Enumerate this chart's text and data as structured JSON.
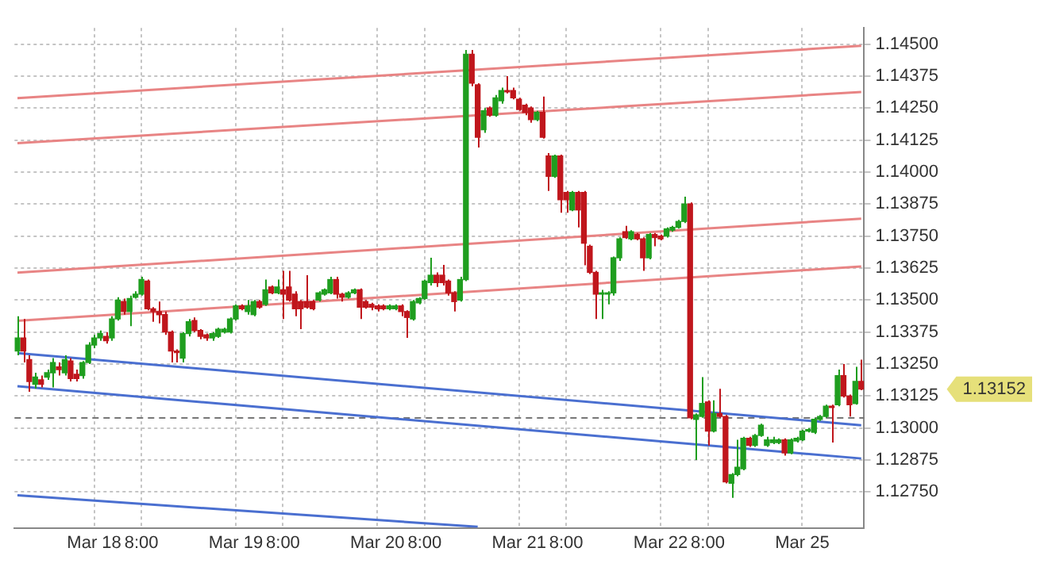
{
  "chart_data": {
    "type": "candlestick",
    "categories": [
      null,
      null,
      null,
      null,
      null,
      null,
      null,
      null,
      null,
      null,
      null,
      null,
      null,
      "Mar 18",
      null,
      null,
      null,
      null,
      null,
      null,
      null,
      "8:00",
      null,
      null,
      null,
      null,
      null,
      null,
      null,
      null,
      null,
      null,
      null,
      null,
      null,
      null,
      null,
      "Mar 19",
      null,
      null,
      null,
      null,
      null,
      null,
      null,
      "8:00",
      null,
      null,
      null,
      null,
      null,
      null,
      null,
      null,
      null,
      null,
      null,
      null,
      null,
      null,
      null,
      "Mar 20",
      null,
      null,
      null,
      null,
      null,
      null,
      null,
      "8:00",
      null,
      null,
      null,
      null,
      null,
      null,
      null,
      null,
      null,
      null,
      null,
      null,
      null,
      null,
      null,
      "Mar 21",
      null,
      null,
      null,
      null,
      null,
      null,
      null,
      "8:00",
      null,
      null,
      null,
      null,
      null,
      null,
      null,
      null,
      null,
      null,
      null,
      null,
      null,
      null,
      null,
      "Mar 22",
      null,
      null,
      null,
      null,
      null,
      null,
      null,
      "8:00",
      null,
      null,
      null,
      null,
      null,
      null,
      null,
      null,
      null,
      null,
      null,
      null,
      null,
      null,
      null,
      "Mar 25",
      null,
      null,
      null,
      null,
      null,
      null,
      null,
      null,
      null,
      null
    ],
    "ohlc": [
      [
        1.13301,
        1.13437,
        1.13284,
        1.13352
      ],
      [
        1.13352,
        1.13426,
        1.13256,
        1.13301
      ],
      [
        1.13267,
        1.13284,
        1.13142,
        1.13182
      ],
      [
        1.13171,
        1.13216,
        1.13154,
        1.13199
      ],
      [
        1.13188,
        1.13205,
        1.13159,
        1.13171
      ],
      [
        1.13199,
        1.13228,
        1.13188,
        1.13216
      ],
      [
        1.13216,
        1.13273,
        1.13159,
        1.13256
      ],
      [
        1.13239,
        1.13256,
        1.13205,
        1.13228
      ],
      [
        1.13216,
        1.13284,
        1.13205,
        1.13267
      ],
      [
        1.13262,
        1.13273,
        1.13182,
        1.13193
      ],
      [
        1.1321,
        1.13228,
        1.13182,
        1.13193
      ],
      [
        1.13205,
        1.13262,
        1.13193,
        1.13256
      ],
      [
        1.13256,
        1.13335,
        1.1325,
        1.13324
      ],
      [
        1.13324,
        1.13364,
        1.13312,
        1.13352
      ],
      [
        1.13352,
        1.13381,
        1.13341,
        1.13369
      ],
      [
        1.13358,
        1.13375,
        1.1333,
        1.13341
      ],
      [
        1.13352,
        1.13437,
        1.13341,
        1.13426
      ],
      [
        1.13426,
        1.13511,
        1.1342,
        1.135
      ],
      [
        1.13494,
        1.13506,
        1.13443,
        1.13455
      ],
      [
        1.13455,
        1.13517,
        1.13398,
        1.13506
      ],
      [
        1.13511,
        1.13534,
        1.13506,
        1.13523
      ],
      [
        1.13523,
        1.13591,
        1.13517,
        1.1358
      ],
      [
        1.13574,
        1.1358,
        1.1346,
        1.13466
      ],
      [
        1.13466,
        1.13472,
        1.13415,
        1.13455
      ],
      [
        1.13455,
        1.13494,
        1.13409,
        1.13443
      ],
      [
        1.13443,
        1.13455,
        1.13364,
        1.13375
      ],
      [
        1.13375,
        1.13381,
        1.13256,
        1.13301
      ],
      [
        1.13301,
        1.13307,
        1.13256,
        1.13295
      ],
      [
        1.13273,
        1.13375,
        1.13256,
        1.13369
      ],
      [
        1.13369,
        1.13426,
        1.13358,
        1.13415
      ],
      [
        1.1342,
        1.13432,
        1.13375,
        1.13381
      ],
      [
        1.13381,
        1.13386,
        1.13347,
        1.13358
      ],
      [
        1.13364,
        1.13369,
        1.13341,
        1.13352
      ],
      [
        1.13352,
        1.13375,
        1.13341,
        1.13369
      ],
      [
        1.13358,
        1.13392,
        1.13352,
        1.13386
      ],
      [
        1.13375,
        1.13392,
        1.13369,
        1.13386
      ],
      [
        1.13375,
        1.13432,
        1.13369,
        1.13426
      ],
      [
        1.13426,
        1.13483,
        1.1342,
        1.13477
      ],
      [
        1.13477,
        1.13483,
        1.1346,
        1.13466
      ],
      [
        1.13455,
        1.135,
        1.13443,
        1.13477
      ],
      [
        1.13443,
        1.135,
        1.13437,
        1.13494
      ],
      [
        1.13494,
        1.135,
        1.13466,
        1.13472
      ],
      [
        1.13483,
        1.1358,
        1.13477,
        1.1354
      ],
      [
        1.13551,
        1.13557,
        1.13523,
        1.13528
      ],
      [
        1.13528,
        1.1358,
        1.13523,
        1.13551
      ],
      [
        1.1354,
        1.13614,
        1.13426,
        1.13523
      ],
      [
        1.13551,
        1.13614,
        1.13494,
        1.135
      ],
      [
        1.13523,
        1.13534,
        1.13437,
        1.13466
      ],
      [
        1.13494,
        1.135,
        1.13386,
        1.13466
      ],
      [
        1.13494,
        1.13597,
        1.13466,
        1.13472
      ],
      [
        1.13494,
        1.135,
        1.1346,
        1.13466
      ],
      [
        1.135,
        1.13534,
        1.13494,
        1.13528
      ],
      [
        1.13523,
        1.13545,
        1.13517,
        1.1354
      ],
      [
        1.13528,
        1.13591,
        1.13523,
        1.1358
      ],
      [
        1.1358,
        1.13591,
        1.13506,
        1.13523
      ],
      [
        1.13523,
        1.13528,
        1.13494,
        1.13511
      ],
      [
        1.13511,
        1.13534,
        1.13506,
        1.13528
      ],
      [
        1.13528,
        1.13545,
        1.13523,
        1.1354
      ],
      [
        1.1354,
        1.13545,
        1.13426,
        1.13472
      ],
      [
        1.13494,
        1.135,
        1.13466,
        1.13472
      ],
      [
        1.13483,
        1.13489,
        1.1346,
        1.13472
      ],
      [
        1.13477,
        1.13483,
        1.13455,
        1.13466
      ],
      [
        1.13477,
        1.13483,
        1.1346,
        1.13466
      ],
      [
        1.13466,
        1.13483,
        1.1346,
        1.13477
      ],
      [
        1.13466,
        1.13483,
        1.1346,
        1.13477
      ],
      [
        1.13477,
        1.13483,
        1.13437,
        1.13455
      ],
      [
        1.13455,
        1.1346,
        1.13352,
        1.13432
      ],
      [
        1.13426,
        1.135,
        1.1342,
        1.13494
      ],
      [
        1.13489,
        1.13511,
        1.13483,
        1.13506
      ],
      [
        1.13506,
        1.1358,
        1.135,
        1.13574
      ],
      [
        1.13568,
        1.13665,
        1.13557,
        1.13597
      ],
      [
        1.13597,
        1.13608,
        1.13551,
        1.13568
      ],
      [
        1.13597,
        1.13637,
        1.13557,
        1.13568
      ],
      [
        1.13574,
        1.1358,
        1.13517,
        1.13528
      ],
      [
        1.13528,
        1.13534,
        1.13455,
        1.13494
      ],
      [
        1.135,
        1.13591,
        1.13494,
        1.1358
      ],
      [
        1.1358,
        1.14477,
        1.13574,
        1.1446
      ],
      [
        1.1446,
        1.14477,
        1.14335,
        1.14347
      ],
      [
        1.14341,
        1.14347,
        1.14096,
        1.14136
      ],
      [
        1.14165,
        1.1425,
        1.14153,
        1.14239
      ],
      [
        1.1425,
        1.14256,
        1.14216,
        1.14222
      ],
      [
        1.14222,
        1.14301,
        1.14216,
        1.1429
      ],
      [
        1.14278,
        1.1433,
        1.14267,
        1.14318
      ],
      [
        1.14318,
        1.14375,
        1.14307,
        1.14313
      ],
      [
        1.14318,
        1.1433,
        1.14284,
        1.1429
      ],
      [
        1.14284,
        1.1429,
        1.14239,
        1.14244
      ],
      [
        1.14261,
        1.14267,
        1.14222,
        1.14233
      ],
      [
        1.1425,
        1.14256,
        1.14193,
        1.14205
      ],
      [
        1.14205,
        1.14239,
        1.14199,
        1.14233
      ],
      [
        1.14233,
        1.14295,
        1.14131,
        1.14136
      ],
      [
        1.14063,
        1.14074,
        1.13926,
        1.13983
      ],
      [
        1.13983,
        1.14068,
        1.13977,
        1.14063
      ],
      [
        1.14063,
        1.14068,
        1.13841,
        1.13892
      ],
      [
        1.1392,
        1.13926,
        1.13841,
        1.13892
      ],
      [
        1.13852,
        1.13926,
        1.13847,
        1.1392
      ],
      [
        1.1392,
        1.13926,
        1.13784,
        1.13852
      ],
      [
        1.1392,
        1.13926,
        1.13636,
        1.13722
      ],
      [
        1.1371,
        1.13716,
        1.13602,
        1.13608
      ],
      [
        1.13608,
        1.13614,
        1.13426,
        1.13523
      ],
      [
        1.13523,
        1.1354,
        1.13426,
        1.13528
      ],
      [
        1.13523,
        1.13534,
        1.13483,
        1.13528
      ],
      [
        1.13528,
        1.1367,
        1.13517,
        1.13665
      ],
      [
        1.13665,
        1.13745,
        1.13653,
        1.13739
      ],
      [
        1.13767,
        1.1379,
        1.13739,
        1.13744
      ],
      [
        1.13739,
        1.13773,
        1.13733,
        1.13767
      ],
      [
        1.13756,
        1.13762,
        1.13733,
        1.13739
      ],
      [
        1.13739,
        1.13745,
        1.13614,
        1.13665
      ],
      [
        1.13665,
        1.13762,
        1.13659,
        1.13756
      ],
      [
        1.13756,
        1.13762,
        1.1371,
        1.13744
      ],
      [
        1.1375,
        1.13756,
        1.13733,
        1.13739
      ],
      [
        1.1375,
        1.13784,
        1.13744,
        1.13778
      ],
      [
        1.13773,
        1.1379,
        1.13767,
        1.13784
      ],
      [
        1.13784,
        1.13813,
        1.13779,
        1.13807
      ],
      [
        1.13807,
        1.13904,
        1.13801,
        1.13875
      ],
      [
        1.13875,
        1.13881,
        1.13034,
        1.1304
      ],
      [
        1.13034,
        1.13057,
        1.12875,
        1.13051
      ],
      [
        1.13045,
        1.13199,
        1.1304,
        1.13096
      ],
      [
        1.13102,
        1.13108,
        1.12932,
        1.12988
      ],
      [
        1.12988,
        1.13108,
        1.12983,
        1.13057
      ],
      [
        1.13057,
        1.13153,
        1.1304,
        1.13045
      ],
      [
        1.13045,
        1.13051,
        1.12784,
        1.1279
      ],
      [
        1.12784,
        1.12824,
        1.12727,
        1.12818
      ],
      [
        1.12818,
        1.12954,
        1.12812,
        1.12847
      ],
      [
        1.12841,
        1.12966,
        1.12835,
        1.1296
      ],
      [
        1.1296,
        1.12966,
        1.12926,
        1.12932
      ],
      [
        1.12932,
        1.12977,
        1.12926,
        1.12971
      ],
      [
        1.12971,
        1.13017,
        1.12966,
        1.13011
      ],
      [
        1.12932,
        1.12966,
        1.12926,
        1.12954
      ],
      [
        1.12943,
        1.12966,
        1.12937,
        1.12954
      ],
      [
        1.12943,
        1.1296,
        1.12937,
        1.12954
      ],
      [
        1.12954,
        1.1296,
        1.12892,
        1.12903
      ],
      [
        1.12903,
        1.1296,
        1.12898,
        1.12954
      ],
      [
        1.12949,
        1.12966,
        1.12943,
        1.1296
      ],
      [
        1.12954,
        1.12994,
        1.12949,
        1.12988
      ],
      [
        1.12988,
        1.13,
        1.12983,
        1.12994
      ],
      [
        1.12983,
        1.1304,
        1.12977,
        1.13034
      ],
      [
        1.13034,
        1.13051,
        1.13028,
        1.13045
      ],
      [
        1.13045,
        1.13091,
        1.1304,
        1.13085
      ],
      [
        1.13085,
        1.13091,
        1.12943,
        1.1308
      ],
      [
        1.13091,
        1.13228,
        1.13085,
        1.13205
      ],
      [
        1.13205,
        1.1325,
        1.13119,
        1.13125
      ],
      [
        1.13125,
        1.13131,
        1.13045,
        1.13091
      ],
      [
        1.13096,
        1.13239,
        1.13091,
        1.13182
      ],
      [
        1.13182,
        1.13267,
        1.13148,
        1.13152
      ]
    ],
    "series": [
      {
        "type": "line",
        "color": "#e88484",
        "values": [
          1.14289,
          null,
          null,
          null,
          null,
          null,
          null,
          null,
          null,
          null,
          null,
          null,
          null,
          null,
          null,
          null,
          null,
          null,
          null,
          null,
          null,
          null,
          null,
          null,
          null,
          null,
          null,
          null,
          null,
          null,
          null,
          null,
          null,
          null,
          null,
          null,
          null,
          null,
          null,
          null,
          null,
          null,
          null,
          null,
          null,
          null,
          null,
          null,
          null,
          null,
          null,
          null,
          null,
          null,
          null,
          null,
          null,
          null,
          null,
          null,
          null,
          null,
          null,
          null,
          null,
          null,
          null,
          null,
          null,
          null,
          null,
          null,
          null,
          null,
          null,
          null,
          null,
          null,
          null,
          null,
          null,
          null,
          null,
          null,
          null,
          null,
          null,
          null,
          null,
          null,
          null,
          null,
          null,
          null,
          null,
          null,
          null,
          null,
          null,
          null,
          null,
          null,
          null,
          null,
          null,
          null,
          null,
          null,
          null,
          null,
          null,
          null,
          null,
          null,
          null,
          null,
          null,
          null,
          null,
          null,
          null,
          null,
          null,
          null,
          null,
          null,
          null,
          null,
          null,
          null,
          null,
          null,
          null,
          null,
          null,
          null,
          null,
          null,
          null,
          null,
          null,
          null,
          null,
          1.14493
        ]
      },
      {
        "type": "line",
        "color": "#e88484",
        "values": [
          1.14113,
          null,
          null,
          null,
          null,
          null,
          null,
          null,
          null,
          null,
          null,
          null,
          null,
          null,
          null,
          null,
          null,
          null,
          null,
          null,
          null,
          null,
          null,
          null,
          null,
          null,
          null,
          null,
          null,
          null,
          null,
          null,
          null,
          null,
          null,
          null,
          null,
          null,
          null,
          null,
          null,
          null,
          null,
          null,
          null,
          null,
          null,
          null,
          null,
          null,
          null,
          null,
          null,
          null,
          null,
          null,
          null,
          null,
          null,
          null,
          null,
          null,
          null,
          null,
          null,
          null,
          null,
          null,
          null,
          null,
          null,
          null,
          null,
          null,
          null,
          null,
          null,
          null,
          null,
          null,
          null,
          null,
          null,
          null,
          null,
          null,
          null,
          null,
          null,
          null,
          null,
          null,
          null,
          null,
          null,
          null,
          null,
          null,
          null,
          null,
          null,
          null,
          null,
          null,
          null,
          null,
          null,
          null,
          null,
          null,
          null,
          null,
          null,
          null,
          null,
          null,
          null,
          null,
          null,
          null,
          null,
          null,
          null,
          null,
          null,
          null,
          null,
          null,
          null,
          null,
          null,
          null,
          null,
          null,
          null,
          null,
          null,
          null,
          null,
          null,
          null,
          null,
          null,
          1.14313
        ]
      },
      {
        "type": "line",
        "color": "#e88484",
        "values": [
          1.13607,
          null,
          null,
          null,
          null,
          null,
          null,
          null,
          null,
          null,
          null,
          null,
          null,
          null,
          null,
          null,
          null,
          null,
          null,
          null,
          null,
          null,
          null,
          null,
          null,
          null,
          null,
          null,
          null,
          null,
          null,
          null,
          null,
          null,
          null,
          null,
          null,
          null,
          null,
          null,
          null,
          null,
          null,
          null,
          null,
          null,
          null,
          null,
          null,
          null,
          null,
          null,
          null,
          null,
          null,
          null,
          null,
          null,
          null,
          null,
          null,
          null,
          null,
          null,
          null,
          null,
          null,
          null,
          null,
          null,
          null,
          null,
          null,
          null,
          null,
          null,
          null,
          null,
          null,
          null,
          null,
          null,
          null,
          null,
          null,
          null,
          null,
          null,
          null,
          null,
          null,
          null,
          null,
          null,
          null,
          null,
          null,
          null,
          null,
          null,
          null,
          null,
          null,
          null,
          null,
          null,
          null,
          null,
          null,
          null,
          null,
          null,
          null,
          null,
          null,
          null,
          null,
          null,
          null,
          null,
          null,
          null,
          null,
          null,
          null,
          null,
          null,
          null,
          null,
          null,
          null,
          null,
          null,
          null,
          null,
          null,
          null,
          null,
          null,
          null,
          null,
          null,
          null,
          1.13818
        ]
      },
      {
        "type": "line",
        "color": "#e88484",
        "values": [
          1.13419,
          null,
          null,
          null,
          null,
          null,
          null,
          null,
          null,
          null,
          null,
          null,
          null,
          null,
          null,
          null,
          null,
          null,
          null,
          null,
          null,
          null,
          null,
          null,
          null,
          null,
          null,
          null,
          null,
          null,
          null,
          null,
          null,
          null,
          null,
          null,
          null,
          null,
          null,
          null,
          null,
          null,
          null,
          null,
          null,
          null,
          null,
          null,
          null,
          null,
          null,
          null,
          null,
          null,
          null,
          null,
          null,
          null,
          null,
          null,
          null,
          null,
          null,
          null,
          null,
          null,
          null,
          null,
          null,
          null,
          null,
          null,
          null,
          null,
          null,
          null,
          null,
          null,
          null,
          null,
          null,
          null,
          null,
          null,
          null,
          null,
          null,
          null,
          null,
          null,
          null,
          null,
          null,
          null,
          null,
          null,
          null,
          null,
          null,
          null,
          null,
          null,
          null,
          null,
          null,
          null,
          null,
          null,
          null,
          null,
          null,
          null,
          null,
          null,
          null,
          null,
          null,
          null,
          null,
          null,
          null,
          null,
          null,
          null,
          null,
          null,
          null,
          null,
          null,
          null,
          null,
          null,
          null,
          null,
          null,
          null,
          null,
          null,
          null,
          null,
          null,
          null,
          null,
          1.13631
        ]
      },
      {
        "type": "line",
        "color": "#4a6fd0",
        "values": [
          1.13293,
          null,
          null,
          null,
          null,
          null,
          null,
          null,
          null,
          null,
          null,
          null,
          null,
          null,
          null,
          null,
          null,
          null,
          null,
          null,
          null,
          null,
          null,
          null,
          null,
          null,
          null,
          null,
          null,
          null,
          null,
          null,
          null,
          null,
          null,
          null,
          null,
          null,
          null,
          null,
          null,
          null,
          null,
          null,
          null,
          null,
          null,
          null,
          null,
          null,
          null,
          null,
          null,
          null,
          null,
          null,
          null,
          null,
          null,
          null,
          null,
          null,
          null,
          null,
          null,
          null,
          null,
          null,
          null,
          null,
          null,
          null,
          null,
          null,
          null,
          null,
          null,
          null,
          null,
          null,
          null,
          null,
          null,
          null,
          null,
          null,
          null,
          null,
          null,
          null,
          null,
          null,
          null,
          null,
          null,
          null,
          null,
          null,
          null,
          null,
          null,
          null,
          null,
          null,
          null,
          null,
          null,
          null,
          null,
          null,
          null,
          null,
          null,
          null,
          null,
          null,
          null,
          null,
          null,
          null,
          null,
          null,
          null,
          null,
          null,
          null,
          null,
          null,
          null,
          null,
          null,
          null,
          null,
          null,
          null,
          null,
          null,
          null,
          null,
          null,
          null,
          null,
          null,
          1.13011
        ]
      },
      {
        "type": "line",
        "color": "#4a6fd0",
        "values": [
          1.13163,
          null,
          null,
          null,
          null,
          null,
          null,
          null,
          null,
          null,
          null,
          null,
          null,
          null,
          null,
          null,
          null,
          null,
          null,
          null,
          null,
          null,
          null,
          null,
          null,
          null,
          null,
          null,
          null,
          null,
          null,
          null,
          null,
          null,
          null,
          null,
          null,
          null,
          null,
          null,
          null,
          null,
          null,
          null,
          null,
          null,
          null,
          null,
          null,
          null,
          null,
          null,
          null,
          null,
          null,
          null,
          null,
          null,
          null,
          null,
          null,
          null,
          null,
          null,
          null,
          null,
          null,
          null,
          null,
          null,
          null,
          null,
          null,
          null,
          null,
          null,
          null,
          null,
          null,
          null,
          null,
          null,
          null,
          null,
          null,
          null,
          null,
          null,
          null,
          null,
          null,
          null,
          null,
          null,
          null,
          null,
          null,
          null,
          null,
          null,
          null,
          null,
          null,
          null,
          null,
          null,
          null,
          null,
          null,
          null,
          null,
          null,
          null,
          null,
          null,
          null,
          null,
          null,
          null,
          null,
          null,
          null,
          null,
          null,
          null,
          null,
          null,
          null,
          null,
          null,
          null,
          null,
          null,
          null,
          null,
          null,
          null,
          null,
          null,
          null,
          null,
          null,
          null,
          1.12881
        ]
      },
      {
        "type": "line",
        "color": "#4a6fd0",
        "values": [
          1.12737,
          null,
          null,
          null,
          null,
          null,
          null,
          null,
          null,
          null,
          null,
          null,
          null,
          null,
          null,
          null,
          null,
          null,
          null,
          null,
          null,
          null,
          null,
          null,
          null,
          null,
          null,
          null,
          null,
          null,
          null,
          null,
          null,
          null,
          null,
          null,
          null,
          null,
          null,
          null,
          null,
          null,
          null,
          null,
          null,
          null,
          null,
          null,
          null,
          null,
          null,
          null,
          null,
          null,
          null,
          null,
          null,
          null,
          null,
          null,
          null,
          null,
          null,
          null,
          null,
          null,
          null,
          null,
          null,
          null,
          null,
          null,
          null,
          null,
          null,
          null,
          null,
          null,
          1.12614,
          null,
          null,
          null,
          null,
          null,
          null,
          null,
          null,
          null,
          null,
          null,
          null,
          null,
          null,
          null,
          null,
          null,
          null,
          null,
          null,
          null,
          null,
          null,
          null,
          null,
          null,
          null,
          null,
          null,
          null,
          null,
          null,
          null,
          null,
          null,
          null,
          null,
          null,
          null,
          null,
          null,
          null,
          null,
          null,
          null,
          null,
          null,
          null,
          null,
          null,
          null,
          null,
          null,
          null,
          null,
          null,
          null,
          null,
          null,
          null,
          null,
          null,
          null,
          null,
          null
        ]
      }
    ],
    "ylim": [
      1.1261,
      1.14563
    ],
    "yticks": [
      {
        "value": 1.1275,
        "label": "1.12750"
      },
      {
        "value": 1.12875,
        "label": "1.12875"
      },
      {
        "value": 1.13,
        "label": "1.13000"
      },
      {
        "value": 1.13125,
        "label": "1.13125"
      },
      {
        "value": 1.1325,
        "label": "1.13250"
      },
      {
        "value": 1.13375,
        "label": "1.13375"
      },
      {
        "value": 1.135,
        "label": "1.13500"
      },
      {
        "value": 1.13625,
        "label": "1.13625"
      },
      {
        "value": 1.1375,
        "label": "1.13750"
      },
      {
        "value": 1.13875,
        "label": "1.13875"
      },
      {
        "value": 1.14,
        "label": "1.14000"
      },
      {
        "value": 1.14125,
        "label": "1.14125"
      },
      {
        "value": 1.1425,
        "label": "1.14250"
      },
      {
        "value": 1.14375,
        "label": "1.14375"
      },
      {
        "value": 1.145,
        "label": "1.14500"
      }
    ],
    "grid": true,
    "ref_lines": [
      {
        "axis": "y",
        "value": 1.1304,
        "color": "#777777",
        "line_style": "dashed"
      }
    ],
    "annotations": [
      "1.13152"
    ]
  }
}
